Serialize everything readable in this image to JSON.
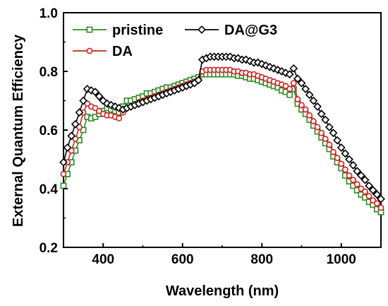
{
  "chart_data": {
    "type": "line",
    "xlabel": "Wavelength (nm)",
    "ylabel": "External Quantum Efficiency",
    "xlim": [
      300,
      1100
    ],
    "ylim": [
      0.2,
      1.0
    ],
    "xticks": [
      400,
      600,
      800,
      1000
    ],
    "yticks": [
      0.2,
      0.4,
      0.6,
      0.8,
      1.0
    ],
    "ytick_labels": [
      "0.2",
      "0.4",
      "0.6",
      "0.8",
      "1.0"
    ],
    "grid": false,
    "legend_position": "top-left",
    "series": [
      {
        "name": "pristine",
        "color": "#2e8b22",
        "marker": "square",
        "x": [
          300,
          310,
          320,
          330,
          340,
          350,
          360,
          370,
          380,
          390,
          400,
          410,
          420,
          430,
          440,
          450,
          460,
          470,
          480,
          490,
          500,
          510,
          520,
          530,
          540,
          550,
          560,
          570,
          580,
          590,
          600,
          610,
          620,
          630,
          640,
          650,
          660,
          670,
          680,
          690,
          700,
          710,
          720,
          730,
          740,
          750,
          760,
          770,
          780,
          790,
          800,
          810,
          820,
          830,
          840,
          850,
          860,
          870,
          880,
          890,
          900,
          910,
          920,
          930,
          940,
          950,
          960,
          970,
          980,
          990,
          1000,
          1010,
          1020,
          1030,
          1040,
          1050,
          1060,
          1070,
          1080,
          1090,
          1100
        ],
        "y": [
          0.41,
          0.45,
          0.49,
          0.53,
          0.565,
          0.6,
          0.645,
          0.64,
          0.645,
          0.655,
          0.665,
          0.675,
          0.67,
          0.665,
          0.66,
          0.68,
          0.7,
          0.7,
          0.705,
          0.71,
          0.715,
          0.725,
          0.725,
          0.73,
          0.735,
          0.74,
          0.745,
          0.745,
          0.75,
          0.755,
          0.76,
          0.765,
          0.77,
          0.775,
          0.78,
          0.79,
          0.79,
          0.79,
          0.79,
          0.79,
          0.79,
          0.79,
          0.79,
          0.79,
          0.785,
          0.785,
          0.78,
          0.775,
          0.775,
          0.77,
          0.765,
          0.76,
          0.755,
          0.75,
          0.745,
          0.735,
          0.73,
          0.72,
          0.74,
          0.69,
          0.67,
          0.655,
          0.635,
          0.615,
          0.595,
          0.575,
          0.555,
          0.535,
          0.51,
          0.49,
          0.47,
          0.445,
          0.425,
          0.41,
          0.395,
          0.38,
          0.37,
          0.355,
          0.345,
          0.33,
          0.32
        ]
      },
      {
        "name": "DA",
        "color": "#cc2020",
        "marker": "circle",
        "x": [
          300,
          310,
          320,
          330,
          340,
          350,
          360,
          370,
          380,
          390,
          400,
          410,
          420,
          430,
          440,
          450,
          460,
          470,
          480,
          490,
          500,
          510,
          520,
          530,
          540,
          550,
          560,
          570,
          580,
          590,
          600,
          610,
          620,
          630,
          640,
          650,
          660,
          670,
          680,
          690,
          700,
          710,
          720,
          730,
          740,
          750,
          760,
          770,
          780,
          790,
          800,
          810,
          820,
          830,
          840,
          850,
          860,
          870,
          880,
          890,
          900,
          910,
          920,
          930,
          940,
          950,
          960,
          970,
          980,
          990,
          1000,
          1010,
          1020,
          1030,
          1040,
          1050,
          1060,
          1070,
          1080,
          1090,
          1100
        ],
        "y": [
          0.45,
          0.49,
          0.53,
          0.57,
          0.61,
          0.66,
          0.69,
          0.68,
          0.675,
          0.665,
          0.655,
          0.65,
          0.65,
          0.645,
          0.64,
          0.66,
          0.675,
          0.68,
          0.685,
          0.695,
          0.7,
          0.705,
          0.71,
          0.715,
          0.72,
          0.725,
          0.73,
          0.735,
          0.74,
          0.745,
          0.75,
          0.755,
          0.76,
          0.765,
          0.77,
          0.8,
          0.805,
          0.805,
          0.805,
          0.805,
          0.805,
          0.805,
          0.805,
          0.8,
          0.8,
          0.795,
          0.795,
          0.79,
          0.79,
          0.785,
          0.78,
          0.775,
          0.77,
          0.765,
          0.76,
          0.755,
          0.75,
          0.74,
          0.76,
          0.705,
          0.685,
          0.67,
          0.65,
          0.63,
          0.61,
          0.59,
          0.57,
          0.55,
          0.525,
          0.505,
          0.485,
          0.465,
          0.445,
          0.43,
          0.415,
          0.4,
          0.39,
          0.375,
          0.36,
          0.35,
          0.335
        ]
      },
      {
        "name": "DA@G3",
        "color": "#000000",
        "marker": "diamond",
        "x": [
          300,
          310,
          320,
          330,
          340,
          350,
          360,
          370,
          380,
          390,
          400,
          410,
          420,
          430,
          440,
          450,
          460,
          470,
          480,
          490,
          500,
          510,
          520,
          530,
          540,
          550,
          560,
          570,
          580,
          590,
          600,
          610,
          620,
          630,
          640,
          650,
          660,
          670,
          680,
          690,
          700,
          710,
          720,
          730,
          740,
          750,
          760,
          770,
          780,
          790,
          800,
          810,
          820,
          830,
          840,
          850,
          860,
          870,
          880,
          890,
          900,
          910,
          920,
          930,
          940,
          950,
          960,
          970,
          980,
          990,
          1000,
          1010,
          1020,
          1030,
          1040,
          1050,
          1060,
          1070,
          1080,
          1090,
          1100
        ],
        "y": [
          0.49,
          0.54,
          0.58,
          0.62,
          0.66,
          0.7,
          0.74,
          0.735,
          0.73,
          0.715,
          0.7,
          0.69,
          0.685,
          0.68,
          0.675,
          0.67,
          0.675,
          0.68,
          0.685,
          0.69,
          0.695,
          0.7,
          0.705,
          0.71,
          0.715,
          0.72,
          0.725,
          0.73,
          0.735,
          0.74,
          0.745,
          0.75,
          0.755,
          0.76,
          0.77,
          0.84,
          0.845,
          0.85,
          0.85,
          0.85,
          0.85,
          0.85,
          0.85,
          0.845,
          0.845,
          0.84,
          0.84,
          0.835,
          0.83,
          0.83,
          0.825,
          0.82,
          0.815,
          0.81,
          0.805,
          0.8,
          0.795,
          0.79,
          0.81,
          0.775,
          0.76,
          0.74,
          0.72,
          0.7,
          0.68,
          0.655,
          0.635,
          0.61,
          0.59,
          0.565,
          0.54,
          0.52,
          0.5,
          0.48,
          0.46,
          0.445,
          0.43,
          0.41,
          0.395,
          0.38,
          0.365
        ]
      }
    ]
  }
}
